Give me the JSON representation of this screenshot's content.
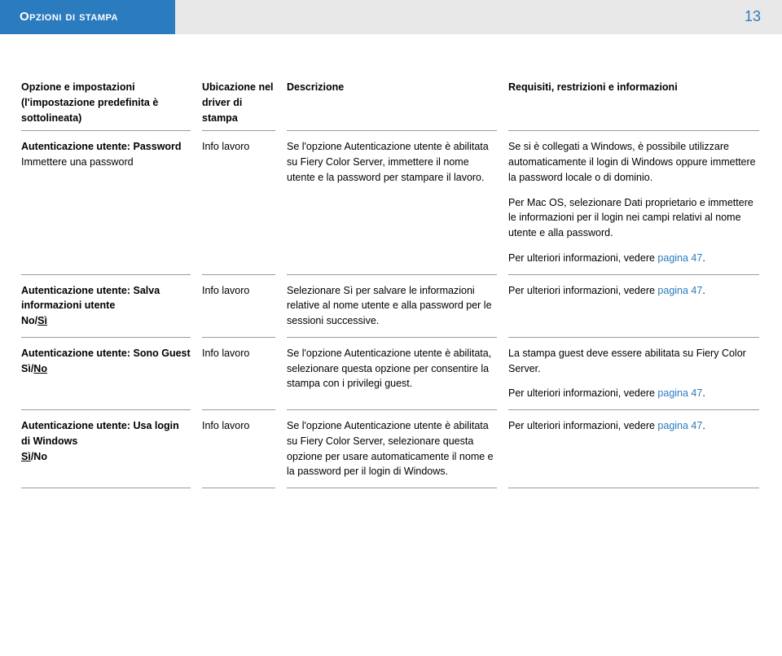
{
  "header": {
    "section_title": "Opzioni di stampa",
    "page_number": "13"
  },
  "columns": {
    "c1": "Opzione e impostazioni (l'impostazione predefinita è sottolineata)",
    "c2": "Ubicazione nel driver di stampa",
    "c3": "Descrizione",
    "c4": "Requisiti, restrizioni e informazioni"
  },
  "rows": [
    {
      "opt_bold": "Autenticazione utente: Password",
      "opt_plain": "Immettere una password",
      "loc": "Info lavoro",
      "desc": "Se l'opzione Autenticazione utente è abilitata su Fiery Color Server, immettere il nome utente e la password per stampare il lavoro.",
      "req_p1": "Se si è collegati a Windows, è possibile utilizzare automaticamente il login di Windows oppure immettere la password locale o di dominio.",
      "req_p2": "Per Mac OS, selezionare Dati proprietario e immettere le informazioni per il login nei campi relativi al nome utente e alla password.",
      "req_p3_a": "Per ulteriori informazioni, vedere ",
      "req_p3_link": "pagina 47",
      "req_p3_b": "."
    },
    {
      "opt_bold": "Autenticazione utente: Salva informazioni utente",
      "opt_no": "No",
      "opt_sep": "/",
      "opt_si": "Sì",
      "loc": "Info lavoro",
      "desc": "Selezionare Sì per salvare le informazioni relative al nome utente e alla password per le sessioni successive.",
      "req_a": "Per ulteriori informazioni, vedere ",
      "req_link": "pagina 47",
      "req_b": "."
    },
    {
      "opt_bold": "Autenticazione utente: Sono Guest",
      "opt_si": "Sì",
      "opt_sep": "/",
      "opt_no": "No",
      "loc": "Info lavoro",
      "desc": "Se l'opzione Autenticazione utente è abilitata, selezionare questa opzione per consentire la stampa con i privilegi guest.",
      "req_p1": "La stampa guest deve essere abilitata su Fiery Color Server.",
      "req_p2_a": "Per ulteriori informazioni, vedere ",
      "req_p2_link": "pagina 47",
      "req_p2_b": "."
    },
    {
      "opt_bold": "Autenticazione utente: Usa login di Windows",
      "opt_si": "Sì",
      "opt_sep": "/",
      "opt_no": "No",
      "loc": "Info lavoro",
      "desc": "Se l'opzione Autenticazione utente è abilitata su Fiery Color Server, selezionare questa opzione per usare automaticamente il nome e la password per il login di Windows.",
      "req_a": "Per ulteriori informazioni, vedere ",
      "req_link": "pagina 47",
      "req_b": "."
    }
  ]
}
